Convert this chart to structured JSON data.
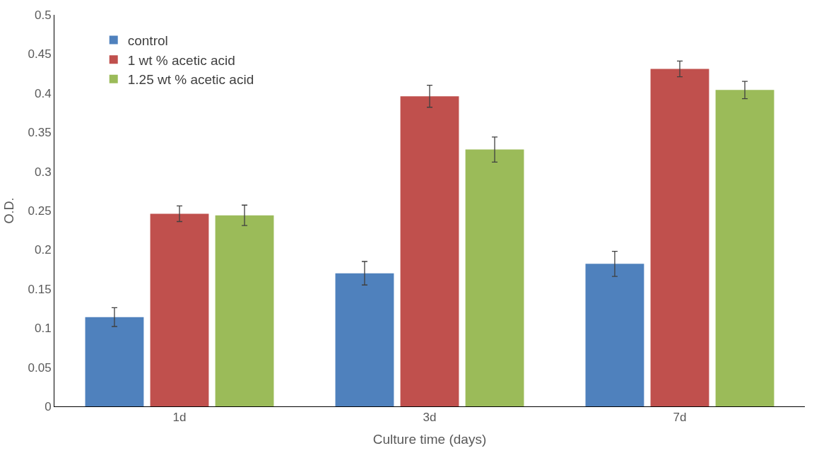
{
  "chart_data": {
    "type": "bar",
    "xlabel": "Culture time (days)",
    "ylabel": "O.D.",
    "categories": [
      "1d",
      "3d",
      "7d"
    ],
    "series": [
      {
        "name": "control",
        "color": "#4f81bd",
        "values": [
          0.114,
          0.17,
          0.182
        ],
        "errors": [
          0.012,
          0.015,
          0.016
        ]
      },
      {
        "name": "1 wt % acetic acid",
        "color": "#c0504d",
        "values": [
          0.246,
          0.396,
          0.431
        ],
        "errors": [
          0.01,
          0.014,
          0.01
        ]
      },
      {
        "name": "1.25 wt % acetic acid",
        "color": "#9bbb59",
        "values": [
          0.244,
          0.328,
          0.404
        ],
        "errors": [
          0.013,
          0.016,
          0.011
        ]
      }
    ],
    "ylim": [
      0,
      0.5
    ],
    "yticks": [
      0,
      0.05,
      0.1,
      0.15,
      0.2,
      0.25,
      0.3,
      0.35,
      0.4,
      0.45,
      0.5
    ],
    "grid": false,
    "legend": "top left"
  }
}
